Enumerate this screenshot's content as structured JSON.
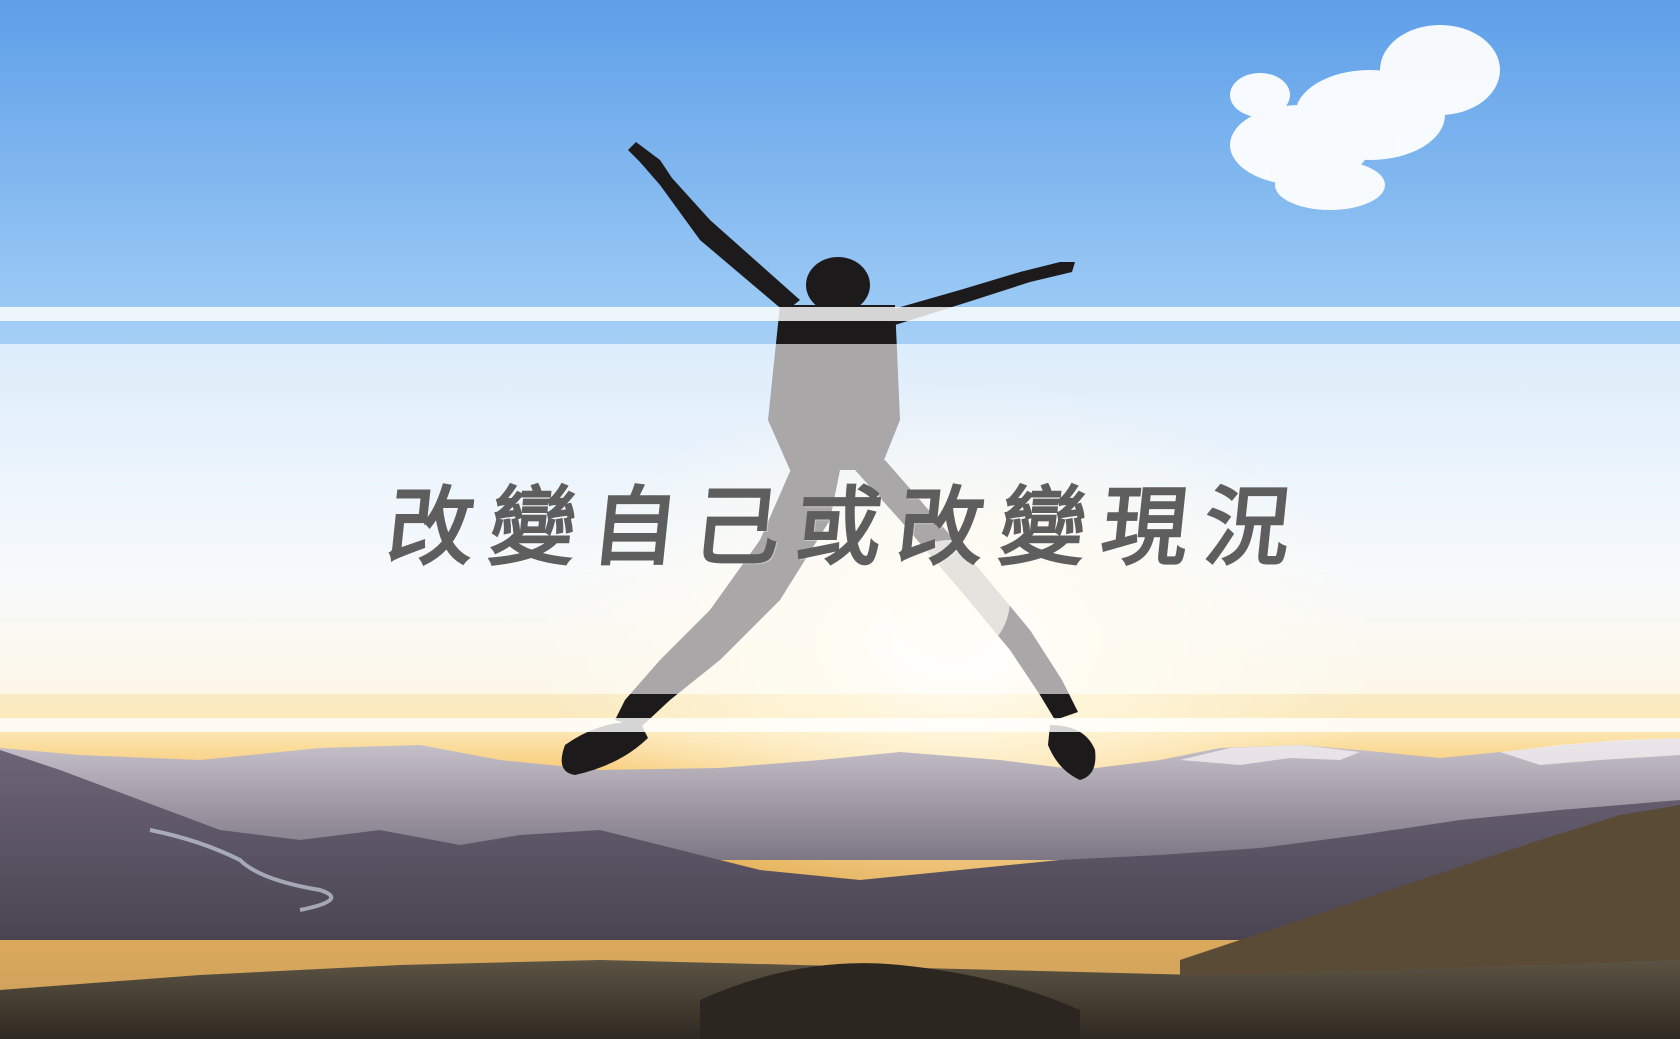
{
  "slide": {
    "headline": "改變自己或改變現況"
  },
  "photo": {
    "subject": "silhouetted-person-jumping",
    "sky_color_top": "#6aa8ea",
    "sky_color_horizon": "#fde9b8",
    "sun_color": "#fff6dc",
    "mountain_color": "#4e4a5c"
  },
  "overlay": {
    "stripe_color": "#ffffff",
    "text_color": "#5e5e5e"
  }
}
